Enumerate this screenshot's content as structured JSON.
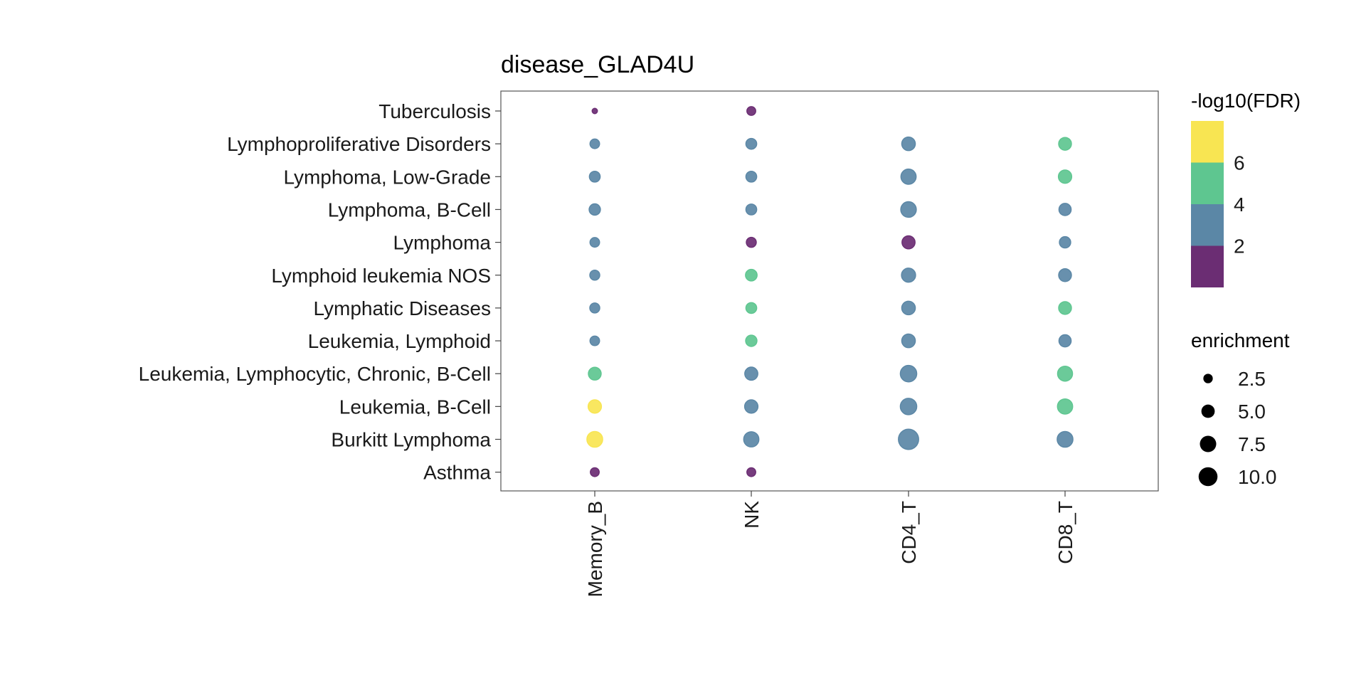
{
  "chart_data": {
    "type": "scatter",
    "title": "disease_GLAD4U",
    "xlabel": "",
    "ylabel": "",
    "x_categories": [
      "Memory_B",
      "NK",
      "CD4_T",
      "CD8_T"
    ],
    "y_categories": [
      "Asthma",
      "Burkitt Lymphoma",
      "Leukemia, B-Cell",
      "Leukemia, Lymphocytic, Chronic, B-Cell",
      "Leukemia, Lymphoid",
      "Lymphatic Diseases",
      "Lymphoid leukemia NOS",
      "Lymphoma",
      "Lymphoma, B-Cell",
      "Lymphoma, Low-Grade",
      "Lymphoproliferative Disorders",
      "Tuberculosis"
    ],
    "points": [
      {
        "x": "Memory_B",
        "y": "Tuberculosis",
        "enrichment": 0.8,
        "neglog10_fdr": 1.2
      },
      {
        "x": "NK",
        "y": "Tuberculosis",
        "enrichment": 2.2,
        "neglog10_fdr": 1.3
      },
      {
        "x": "Memory_B",
        "y": "Lymphoproliferative Disorders",
        "enrichment": 2.6,
        "neglog10_fdr": 3.0
      },
      {
        "x": "NK",
        "y": "Lymphoproliferative Disorders",
        "enrichment": 3.3,
        "neglog10_fdr": 3.0
      },
      {
        "x": "CD4_T",
        "y": "Lymphoproliferative Disorders",
        "enrichment": 5.2,
        "neglog10_fdr": 3.2
      },
      {
        "x": "CD8_T",
        "y": "Lymphoproliferative Disorders",
        "enrichment": 4.6,
        "neglog10_fdr": 4.5
      },
      {
        "x": "Memory_B",
        "y": "Lymphoma, Low-Grade",
        "enrichment": 3.3,
        "neglog10_fdr": 3.0
      },
      {
        "x": "NK",
        "y": "Lymphoma, Low-Grade",
        "enrichment": 3.3,
        "neglog10_fdr": 3.0
      },
      {
        "x": "CD4_T",
        "y": "Lymphoma, Low-Grade",
        "enrichment": 6.5,
        "neglog10_fdr": 3.3
      },
      {
        "x": "CD8_T",
        "y": "Lymphoma, Low-Grade",
        "enrichment": 5.0,
        "neglog10_fdr": 4.6
      },
      {
        "x": "Memory_B",
        "y": "Lymphoma, B-Cell",
        "enrichment": 3.6,
        "neglog10_fdr": 3.0
      },
      {
        "x": "NK",
        "y": "Lymphoma, B-Cell",
        "enrichment": 3.3,
        "neglog10_fdr": 3.0
      },
      {
        "x": "CD4_T",
        "y": "Lymphoma, B-Cell",
        "enrichment": 6.8,
        "neglog10_fdr": 3.4
      },
      {
        "x": "CD8_T",
        "y": "Lymphoma, B-Cell",
        "enrichment": 4.2,
        "neglog10_fdr": 3.2
      },
      {
        "x": "Memory_B",
        "y": "Lymphoma",
        "enrichment": 2.6,
        "neglog10_fdr": 2.9
      },
      {
        "x": "NK",
        "y": "Lymphoma",
        "enrichment": 2.8,
        "neglog10_fdr": 1.5
      },
      {
        "x": "CD4_T",
        "y": "Lymphoma",
        "enrichment": 4.8,
        "neglog10_fdr": 1.6
      },
      {
        "x": "CD8_T",
        "y": "Lymphoma",
        "enrichment": 3.6,
        "neglog10_fdr": 3.0
      },
      {
        "x": "Memory_B",
        "y": "Lymphoid leukemia NOS",
        "enrichment": 2.8,
        "neglog10_fdr": 3.0
      },
      {
        "x": "NK",
        "y": "Lymphoid leukemia NOS",
        "enrichment": 3.8,
        "neglog10_fdr": 4.6
      },
      {
        "x": "CD4_T",
        "y": "Lymphoid leukemia NOS",
        "enrichment": 5.6,
        "neglog10_fdr": 3.3
      },
      {
        "x": "CD8_T",
        "y": "Lymphoid leukemia NOS",
        "enrichment": 4.6,
        "neglog10_fdr": 3.2
      },
      {
        "x": "Memory_B",
        "y": "Lymphatic Diseases",
        "enrichment": 2.8,
        "neglog10_fdr": 3.0
      },
      {
        "x": "NK",
        "y": "Lymphatic Diseases",
        "enrichment": 3.3,
        "neglog10_fdr": 4.5
      },
      {
        "x": "CD4_T",
        "y": "Lymphatic Diseases",
        "enrichment": 5.2,
        "neglog10_fdr": 3.2
      },
      {
        "x": "CD8_T",
        "y": "Lymphatic Diseases",
        "enrichment": 4.6,
        "neglog10_fdr": 4.6
      },
      {
        "x": "Memory_B",
        "y": "Leukemia, Lymphoid",
        "enrichment": 2.6,
        "neglog10_fdr": 3.0
      },
      {
        "x": "NK",
        "y": "Leukemia, Lymphoid",
        "enrichment": 3.6,
        "neglog10_fdr": 4.6
      },
      {
        "x": "CD4_T",
        "y": "Leukemia, Lymphoid",
        "enrichment": 5.2,
        "neglog10_fdr": 3.3
      },
      {
        "x": "CD8_T",
        "y": "Leukemia, Lymphoid",
        "enrichment": 4.2,
        "neglog10_fdr": 3.2
      },
      {
        "x": "Memory_B",
        "y": "Leukemia, Lymphocytic, Chronic, B-Cell",
        "enrichment": 4.6,
        "neglog10_fdr": 4.8
      },
      {
        "x": "NK",
        "y": "Leukemia, Lymphocytic, Chronic, B-Cell",
        "enrichment": 4.8,
        "neglog10_fdr": 3.3
      },
      {
        "x": "CD4_T",
        "y": "Leukemia, Lymphocytic, Chronic, B-Cell",
        "enrichment": 7.6,
        "neglog10_fdr": 3.4
      },
      {
        "x": "CD8_T",
        "y": "Leukemia, Lymphocytic, Chronic, B-Cell",
        "enrichment": 6.3,
        "neglog10_fdr": 4.7
      },
      {
        "x": "Memory_B",
        "y": "Leukemia, B-Cell",
        "enrichment": 5.0,
        "neglog10_fdr": 7.0
      },
      {
        "x": "NK",
        "y": "Leukemia, B-Cell",
        "enrichment": 5.0,
        "neglog10_fdr": 3.3
      },
      {
        "x": "CD4_T",
        "y": "Leukemia, B-Cell",
        "enrichment": 7.6,
        "neglog10_fdr": 3.4
      },
      {
        "x": "CD8_T",
        "y": "Leukemia, B-Cell",
        "enrichment": 6.5,
        "neglog10_fdr": 4.7
      },
      {
        "x": "Memory_B",
        "y": "Burkitt Lymphoma",
        "enrichment": 7.0,
        "neglog10_fdr": 7.2
      },
      {
        "x": "NK",
        "y": "Burkitt Lymphoma",
        "enrichment": 6.5,
        "neglog10_fdr": 3.3
      },
      {
        "x": "CD4_T",
        "y": "Burkitt Lymphoma",
        "enrichment": 11.5,
        "neglog10_fdr": 3.5
      },
      {
        "x": "CD8_T",
        "y": "Burkitt Lymphoma",
        "enrichment": 7.0,
        "neglog10_fdr": 3.4
      },
      {
        "x": "Memory_B",
        "y": "Asthma",
        "enrichment": 2.2,
        "neglog10_fdr": 1.3
      },
      {
        "x": "NK",
        "y": "Asthma",
        "enrichment": 2.2,
        "neglog10_fdr": 1.3
      }
    ],
    "color_legend": {
      "title": "-log10(FDR)",
      "breaks": [
        2,
        4,
        6
      ],
      "range": [
        0,
        8
      ],
      "bins": [
        {
          "from": 0,
          "to": 2,
          "color": "#6b2d73"
        },
        {
          "from": 2,
          "to": 4,
          "color": "#5b87a6"
        },
        {
          "from": 4,
          "to": 6,
          "color": "#5ec690"
        },
        {
          "from": 6,
          "to": 8,
          "color": "#f8e552"
        }
      ]
    },
    "size_legend": {
      "title": "enrichment",
      "entries": [
        {
          "value": 2.5,
          "label": "2.5"
        },
        {
          "value": 5.0,
          "label": "5.0"
        },
        {
          "value": 7.5,
          "label": "7.5"
        },
        {
          "value": 10.0,
          "label": "10.0"
        }
      ]
    },
    "grid": false,
    "legend_position": "right"
  }
}
